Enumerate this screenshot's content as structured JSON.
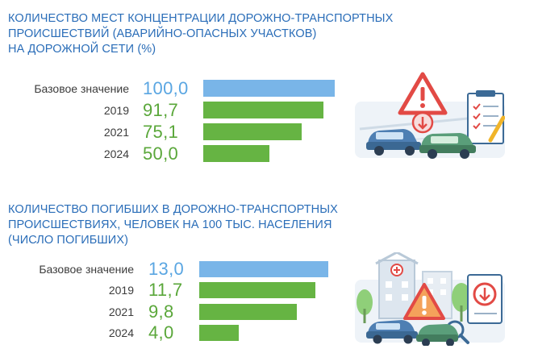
{
  "colors": {
    "title": "#2a6db8",
    "baseline_bar": "#79b5e8",
    "baseline_value": "#5aa6e2",
    "year_bar": "#66b443",
    "year_value": "#5aa73a",
    "label": "#3c3c3c"
  },
  "chart_data": [
    {
      "type": "bar",
      "orientation": "horizontal",
      "title_lines": [
        "КОЛИЧЕСТВО МЕСТ КОНЦЕНТРАЦИИ ДОРОЖНО-ТРАНСПОРТНЫХ",
        "ПРОИСШЕСТВИЙ (АВАРИЙНО-ОПАСНЫХ УЧАСТКОВ)",
        "НА ДОРОЖНОЙ СЕТИ (%)"
      ],
      "categories": [
        "Базовое значение",
        "2019",
        "2021",
        "2024"
      ],
      "values": [
        100.0,
        91.7,
        75.1,
        50.0
      ],
      "value_labels": [
        "100,0",
        "91,7",
        "75,1",
        "50,0"
      ]
    },
    {
      "type": "bar",
      "orientation": "horizontal",
      "title_lines": [
        "КОЛИЧЕСТВО ПОГИБШИХ В ДОРОЖНО-ТРАНСПОРТНЫХ",
        "ПРОИСШЕСТВИЯХ, ЧЕЛОВЕК НА 100 ТЫС. НАСЕЛЕНИЯ",
        "(ЧИСЛО ПОГИБШИХ)"
      ],
      "categories": [
        "Базовое значение",
        "2019",
        "2021",
        "2024"
      ],
      "values": [
        13.0,
        11.7,
        9.8,
        4.0
      ],
      "value_labels": [
        "13,0",
        "11,7",
        "9,8",
        "4,0"
      ]
    }
  ],
  "illustrations": [
    {
      "icon": "road-accident-warning-checklist-icon"
    },
    {
      "icon": "city-accident-warning-magnifier-icon"
    }
  ]
}
